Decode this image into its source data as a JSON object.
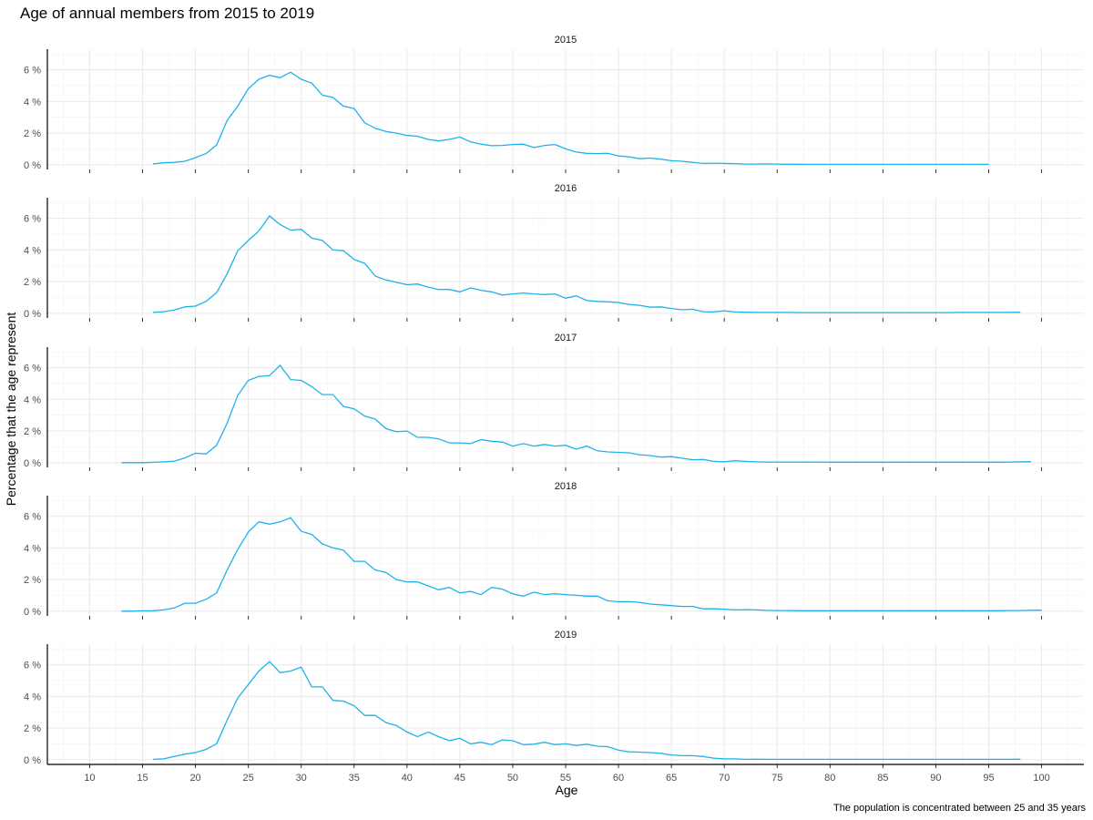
{
  "chart_data": {
    "type": "line",
    "title": "Age of annual members from 2015 to 2019",
    "xlabel": "Age",
    "ylabel": "Percentage that the age represent",
    "caption": "The population is concentrated between 25 and 35 years",
    "xlim": [
      6,
      104
    ],
    "ylim": [
      -0.3,
      7.3
    ],
    "x_ticks": [
      "10",
      "15",
      "20",
      "25",
      "30",
      "35",
      "40",
      "45",
      "50",
      "55",
      "60",
      "65",
      "70",
      "75",
      "80",
      "85",
      "90",
      "95",
      "100"
    ],
    "y_ticks": [
      "0 %",
      "2 %",
      "4 %",
      "6 %"
    ],
    "grid": true,
    "color": "#1fb2ea",
    "panels": [
      {
        "label": "2015",
        "x_start": 16,
        "values": [
          0.05,
          0.12,
          0.15,
          0.22,
          0.45,
          0.7,
          1.25,
          2.8,
          3.7,
          4.8,
          5.4,
          5.65,
          5.5,
          5.85,
          5.4,
          5.15,
          4.4,
          4.25,
          3.7,
          3.55,
          2.65,
          2.3,
          2.1,
          2.0,
          1.85,
          1.8,
          1.6,
          1.5,
          1.6,
          1.75,
          1.45,
          1.3,
          1.2,
          1.22,
          1.28,
          1.3,
          1.08,
          1.22,
          1.28,
          1.0,
          0.8,
          0.72,
          0.7,
          0.72,
          0.55,
          0.5,
          0.38,
          0.42,
          0.35,
          0.25,
          0.22,
          0.15,
          0.08,
          0.1,
          0.08,
          0.07,
          0.04,
          0.04,
          0.05,
          0.04,
          0.03,
          0.03,
          0.02,
          0.02,
          0.02,
          0.02,
          0.02,
          0.02,
          0.02,
          0.02,
          0.02,
          0.02,
          0.02,
          0.02,
          0.02,
          0.02,
          0.02,
          0.02,
          0.02,
          0.02
        ]
      },
      {
        "label": "2016",
        "x_start": 16,
        "values": [
          0.05,
          0.1,
          0.2,
          0.4,
          0.45,
          0.75,
          1.3,
          2.5,
          3.95,
          4.6,
          5.2,
          6.15,
          5.6,
          5.25,
          5.3,
          4.75,
          4.6,
          4.0,
          3.95,
          3.4,
          3.15,
          2.35,
          2.1,
          1.95,
          1.8,
          1.85,
          1.65,
          1.5,
          1.5,
          1.35,
          1.6,
          1.45,
          1.35,
          1.15,
          1.22,
          1.28,
          1.22,
          1.18,
          1.22,
          0.95,
          1.1,
          0.8,
          0.75,
          0.72,
          0.68,
          0.55,
          0.5,
          0.38,
          0.4,
          0.3,
          0.22,
          0.25,
          0.1,
          0.08,
          0.15,
          0.08,
          0.06,
          0.05,
          0.05,
          0.05,
          0.05,
          0.04,
          0.04,
          0.04,
          0.04,
          0.04,
          0.04,
          0.04,
          0.04,
          0.04,
          0.04,
          0.04,
          0.04,
          0.04,
          0.04,
          0.04,
          0.05,
          0.05,
          0.05,
          0.05,
          0.05,
          0.05,
          0.06
        ]
      },
      {
        "label": "2017",
        "x_start": 13,
        "values": [
          0.0,
          0.0,
          0.0,
          0.02,
          0.05,
          0.1,
          0.3,
          0.6,
          0.55,
          1.1,
          2.5,
          4.25,
          5.2,
          5.45,
          5.5,
          6.15,
          5.25,
          5.2,
          4.8,
          4.3,
          4.3,
          3.55,
          3.4,
          2.95,
          2.75,
          2.15,
          1.95,
          2.0,
          1.6,
          1.6,
          1.5,
          1.25,
          1.25,
          1.2,
          1.45,
          1.35,
          1.3,
          1.05,
          1.2,
          1.05,
          1.15,
          1.05,
          1.1,
          0.85,
          1.05,
          0.75,
          0.68,
          0.65,
          0.62,
          0.5,
          0.45,
          0.35,
          0.38,
          0.28,
          0.18,
          0.2,
          0.08,
          0.05,
          0.12,
          0.08,
          0.05,
          0.04,
          0.04,
          0.04,
          0.04,
          0.04,
          0.04,
          0.03,
          0.03,
          0.03,
          0.03,
          0.03,
          0.03,
          0.03,
          0.03,
          0.03,
          0.03,
          0.03,
          0.03,
          0.03,
          0.03,
          0.03,
          0.03,
          0.03,
          0.04,
          0.05,
          0.06
        ]
      },
      {
        "label": "2018",
        "x_start": 13,
        "values": [
          0.0,
          0.0,
          0.02,
          0.03,
          0.08,
          0.2,
          0.5,
          0.5,
          0.75,
          1.15,
          2.6,
          3.9,
          5.0,
          5.65,
          5.5,
          5.65,
          5.9,
          5.05,
          4.85,
          4.25,
          4.0,
          3.85,
          3.15,
          3.15,
          2.6,
          2.45,
          2.0,
          1.85,
          1.85,
          1.6,
          1.35,
          1.5,
          1.15,
          1.25,
          1.05,
          1.5,
          1.4,
          1.1,
          0.95,
          1.2,
          1.05,
          1.1,
          1.05,
          1.0,
          0.95,
          0.95,
          0.65,
          0.6,
          0.6,
          0.55,
          0.45,
          0.4,
          0.35,
          0.3,
          0.3,
          0.15,
          0.15,
          0.12,
          0.08,
          0.1,
          0.08,
          0.05,
          0.04,
          0.04,
          0.03,
          0.03,
          0.03,
          0.03,
          0.03,
          0.03,
          0.03,
          0.03,
          0.03,
          0.03,
          0.03,
          0.03,
          0.03,
          0.03,
          0.03,
          0.03,
          0.03,
          0.03,
          0.03,
          0.03,
          0.04,
          0.04,
          0.05,
          0.06
        ]
      },
      {
        "label": "2019",
        "x_start": 16,
        "values": [
          0.02,
          0.05,
          0.2,
          0.35,
          0.45,
          0.65,
          1.0,
          2.5,
          3.9,
          4.75,
          5.6,
          6.2,
          5.5,
          5.6,
          5.85,
          4.6,
          4.6,
          3.75,
          3.7,
          3.4,
          2.8,
          2.8,
          2.35,
          2.15,
          1.75,
          1.45,
          1.75,
          1.45,
          1.2,
          1.35,
          1.0,
          1.1,
          0.95,
          1.25,
          1.2,
          0.95,
          0.98,
          1.1,
          0.95,
          1.0,
          0.9,
          0.98,
          0.85,
          0.82,
          0.6,
          0.5,
          0.48,
          0.45,
          0.4,
          0.3,
          0.25,
          0.25,
          0.2,
          0.1,
          0.05,
          0.05,
          0.02,
          0.03,
          0.02,
          0.02,
          0.02,
          0.02,
          0.02,
          0.02,
          0.02,
          0.02,
          0.02,
          0.02,
          0.02,
          0.02,
          0.02,
          0.02,
          0.02,
          0.02,
          0.02,
          0.02,
          0.02,
          0.02,
          0.02,
          0.02,
          0.02,
          0.02,
          0.03
        ]
      }
    ]
  }
}
